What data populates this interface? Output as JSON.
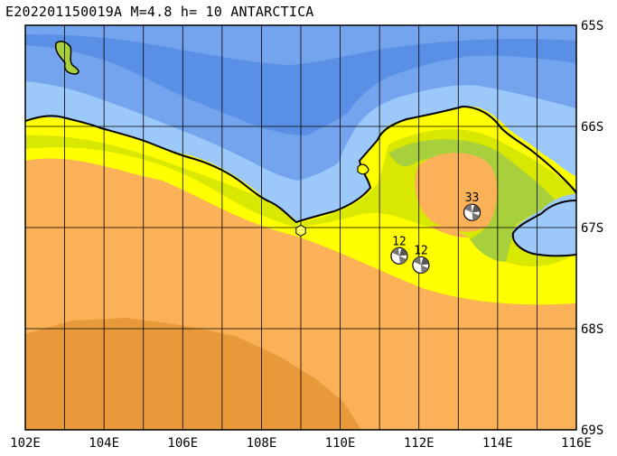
{
  "header": {
    "title": "E202201150019A M=4.8 h= 10 ANTARCTICA"
  },
  "map": {
    "lon_range": [
      102,
      116
    ],
    "lat_range": [
      -65,
      -69
    ],
    "lon_ticks": [
      "102E",
      "104E",
      "106E",
      "108E",
      "110E",
      "112E",
      "114E",
      "116E"
    ],
    "lat_ticks": [
      "65S",
      "66S",
      "67S",
      "68S",
      "69S"
    ],
    "colors": {
      "deep_ocean": "#5a8fe6",
      "mid_ocean": "#74a4ee",
      "shallow_ocean": "#9cc8fa",
      "ice_sheet_low": "#ffff00",
      "ice_sheet_mid": "#d9e800",
      "ice_sheet_green": "#a8cf3c",
      "ice_sheet_high": "#fbb157",
      "ice_sheet_highest": "#e89a3a",
      "epicenter": "#ffff66"
    },
    "epicenter": {
      "lon": 109.0,
      "lat": -67.03
    },
    "events": [
      {
        "label": "33",
        "lon": 113.35,
        "lat": -66.85
      },
      {
        "label": "12",
        "lon": 111.5,
        "lat": -67.28
      },
      {
        "label": "12",
        "lon": 112.05,
        "lat": -67.37
      }
    ]
  }
}
